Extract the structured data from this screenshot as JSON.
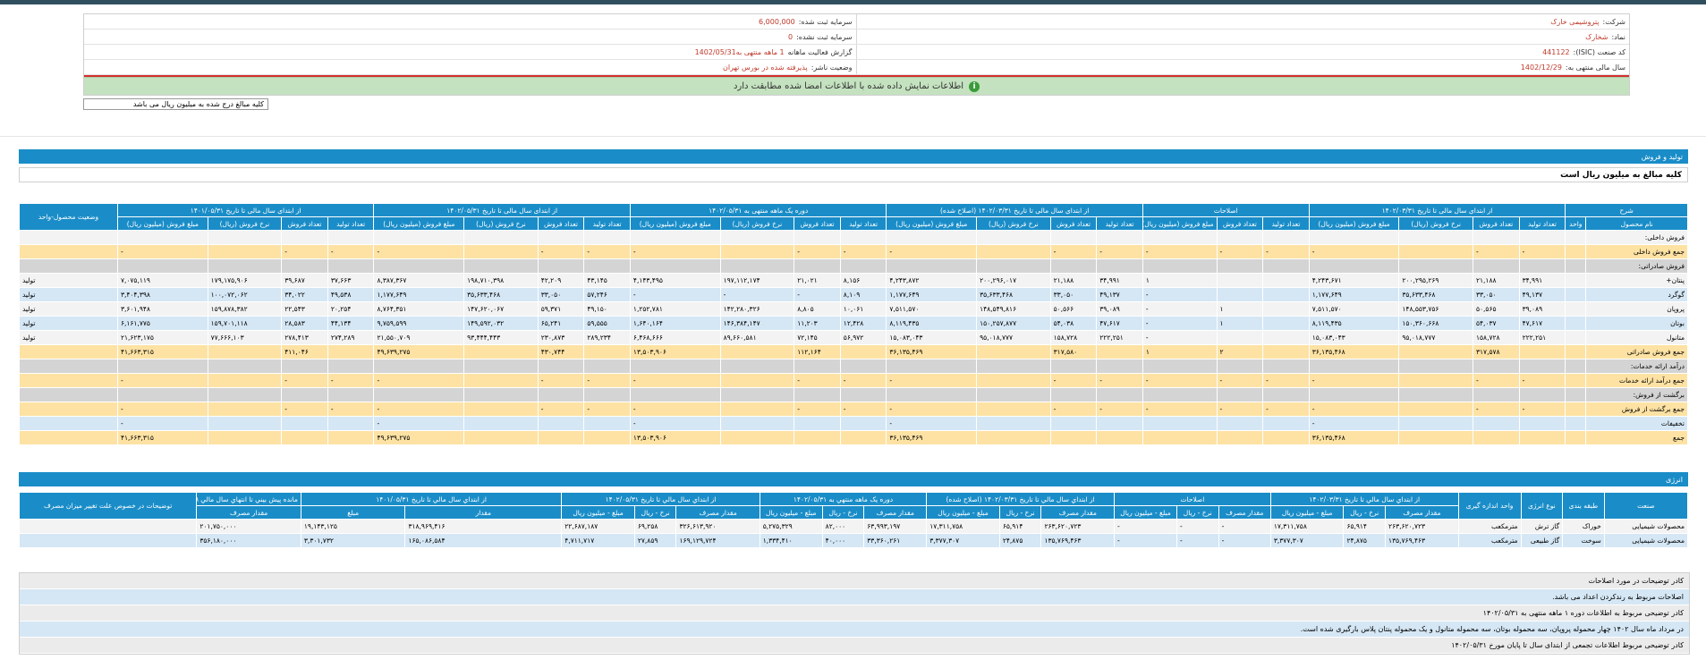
{
  "info": {
    "company_label": "شرکت:",
    "company_value": "پتروشیمی خارک",
    "reg_capital_label": "سرمایه ثبت شده:",
    "reg_capital_value": "6,000,000",
    "symbol_label": "نماد:",
    "symbol_value": "شخارک",
    "unreg_capital_label": "سرمایه ثبت نشده:",
    "unreg_capital_value": "0",
    "isic_label": "کد صنعت (ISIC):",
    "isic_value": "441122",
    "report_label": "گزارش فعالیت ماهانه",
    "report_value": "1 ماهه منتهی به1402/05/31",
    "fiscal_label": "سال مالی منتهی به:",
    "fiscal_value": "1402/12/29",
    "status_label": "وضعیت ناشر:",
    "status_value": "پذیرفته شده در بورس تهران",
    "banner": "اطلاعات نمایش داده شده با اطلاعات امضا شده مطابقت دارد",
    "banner_icon": "info-icon",
    "unit_note": "کلیه مبالغ درج شده به میلیون ریال می باشد"
  },
  "production": {
    "title": "تولید و فروش",
    "note": "کلیه مبالغ به میلیون ریال است",
    "group_headers": [
      "شرح",
      "از ابتدای سال مالی تا تاریخ ۱۴۰۲/۰۳/۳۱",
      "اصلاحات",
      "از ابتدای سال مالی تا تاریخ ۱۴۰۲/۰۳/۳۱ (اصلاح شده)",
      "دوره یک ماهه منتهی به ۱۴۰۲/۰۵/۳۱",
      "از ابتدای سال مالی تا تاریخ ۱۴۰۲/۰۵/۳۱",
      "از ابتدای سال مالی تا تاریخ ۱۴۰۱/۰۵/۳۱",
      "وضعیت محصول-واحد"
    ],
    "sub_headers": [
      "نام محصول",
      "واحد",
      "تعداد تولید",
      "تعداد فروش",
      "نرخ فروش (ریال)",
      "مبلغ فروش (میلیون ریال)",
      "تعداد تولید",
      "تعداد فروش",
      "مبلغ فروش (میلیون ریال)",
      "تعداد تولید",
      "تعداد فروش",
      "نرخ فروش (ریال)",
      "مبلغ فروش (میلیون ریال)",
      "تعداد تولید",
      "تعداد فروش",
      "نرخ فروش (ریال)",
      "مبلغ فروش (میلیون ریال)",
      "تعداد تولید",
      "تعداد فروش",
      "نرخ فروش (ریال)",
      "مبلغ فروش (میلیون ریال)",
      "تعداد تولید",
      "تعداد فروش",
      "نرخ فروش (ریال)",
      "مبلغ فروش (میلیون ریال)",
      ""
    ],
    "rows": [
      {
        "style": "w",
        "cells": [
          "فروش داخلی:",
          "",
          "",
          "",
          "",
          "",
          "",
          "",
          "",
          "",
          "",
          "",
          "",
          "",
          "",
          "",
          "",
          "",
          "",
          "",
          "",
          "",
          "",
          "",
          "",
          ""
        ]
      },
      {
        "style": "y",
        "cells": [
          "جمع فروش داخلی",
          "",
          "-",
          "-",
          "",
          "-",
          "-",
          "-",
          "-",
          "-",
          "-",
          "",
          "-",
          "-",
          "-",
          "",
          "-",
          "-",
          "-",
          "",
          "-",
          "-",
          "-",
          "",
          "-",
          ""
        ]
      },
      {
        "style": "g",
        "cells": [
          "فروش صادراتی:",
          "",
          "",
          "",
          "",
          "",
          "",
          "",
          "",
          "",
          "",
          "",
          "",
          "",
          "",
          "",
          "",
          "",
          "",
          "",
          "",
          "",
          "",
          "",
          "",
          ""
        ]
      },
      {
        "style": "w",
        "cells": [
          "پنتان+",
          "",
          "۳۴,۹۹۱",
          "۲۱,۱۸۸",
          "۲۰۰,۲۹۵,۲۶۹",
          "۴,۲۴۳,۶۷۱",
          "",
          "",
          "۱",
          "۳۴,۹۹۱",
          "۲۱,۱۸۸",
          "۲۰۰,۲۹۶,۰۱۷",
          "۴,۲۴۳,۸۷۲",
          "۸,۱۵۶",
          "۲۱,۰۲۱",
          "۱۹۷,۱۱۲,۱۷۴",
          "۴,۱۴۳,۴۹۵",
          "۴۳,۱۴۵",
          "۴۲,۲۰۹",
          "۱۹۸,۷۱۰,۳۹۸",
          "۸,۳۸۷,۳۶۷",
          "۳۷,۶۶۳",
          "۳۹,۶۸۷",
          "۱۷۹,۱۷۵,۹۰۶",
          "۷,۰۷۵,۱۱۹",
          "تولید"
        ]
      },
      {
        "style": "b",
        "cells": [
          "گوگرد",
          "",
          "۴۹,۱۳۷",
          "۳۳,۰۵۰",
          "۳۵,۶۳۳,۴۶۸",
          "۱,۱۷۷,۶۴۹",
          "",
          "",
          "-",
          "۴۹,۱۳۷",
          "۳۳,۰۵۰",
          "۳۵,۶۳۳,۴۶۸",
          "۱,۱۷۷,۶۴۹",
          "۸,۱۰۹",
          "-",
          "-",
          "-",
          "۵۷,۲۴۶",
          "۳۳,۰۵۰",
          "۳۵,۶۳۳,۴۶۸",
          "۱,۱۷۷,۶۴۹",
          "۴۹,۵۳۸",
          "۳۴,۰۲۲",
          "۱۰۰,۰۷۲,۰۶۲",
          "۳,۴۰۴,۳۹۸",
          "تولید"
        ]
      },
      {
        "style": "w",
        "cells": [
          "پروپان",
          "",
          "۳۹,۰۸۹",
          "۵۰,۵۶۵",
          "۱۴۸,۵۵۳,۷۵۶",
          "۷,۵۱۱,۵۷۰",
          "",
          "۱",
          "-",
          "۳۹,۰۸۹",
          "۵۰,۵۶۶",
          "۱۴۸,۵۴۹,۸۱۶",
          "۷,۵۱۱,۵۷۰",
          "۱۰,۰۶۱",
          "۸,۸۰۵",
          "۱۴۲,۲۸۰,۳۲۶",
          "۱,۲۵۲,۷۸۱",
          "۴۹,۱۵۰",
          "۵۹,۳۷۱",
          "۱۴۷,۶۲۰,۰۶۷",
          "۸,۷۶۴,۳۵۱",
          "۲۰,۲۵۴",
          "۲۲,۵۴۳",
          "۱۵۹,۸۷۸,۳۸۲",
          "۳,۶۰۱,۹۴۸",
          "تولید"
        ]
      },
      {
        "style": "b",
        "cells": [
          "بوتان",
          "",
          "۴۷,۶۱۷",
          "۵۴,۰۳۷",
          "۱۵۰,۳۶۰,۶۶۸",
          "۸,۱۱۹,۴۳۵",
          "",
          "۱",
          "-",
          "۴۷,۶۱۷",
          "۵۴,۰۳۸",
          "۱۵۰,۲۵۷,۸۷۷",
          "۸,۱۱۹,۴۳۵",
          "۱۲,۴۲۸",
          "۱۱,۲۰۳",
          "۱۴۶,۳۸۴,۱۴۷",
          "۱,۶۴۰,۱۶۴",
          "۵۹,۵۵۵",
          "۶۵,۲۴۱",
          "۱۴۹,۵۹۲,۰۳۲",
          "۹,۷۵۹,۵۹۹",
          "۴۴,۱۳۴",
          "۲۸,۵۸۳",
          "۱۵۹,۷۰۱,۱۱۸",
          "۶,۱۶۱,۷۷۵",
          "تولید"
        ]
      },
      {
        "style": "w",
        "cells": [
          "متانول",
          "",
          "۲۲۲,۲۵۱",
          "۱۵۸,۷۲۸",
          "۹۵,۰۱۸,۷۷۷",
          "۱۵,۰۸۳,۰۴۳",
          "",
          "",
          "-",
          "۲۲۲,۲۵۱",
          "۱۵۸,۷۲۸",
          "۹۵,۰۱۸,۷۷۷",
          "۱۵,۰۸۳,۰۴۳",
          "۵۶,۹۷۲",
          "۷۲,۱۴۵",
          "۸۹,۶۶۰,۵۸۱",
          "۶,۴۶۸,۶۶۶",
          "۲۸۹,۲۳۴",
          "۲۳۰,۸۷۳",
          "۹۳,۴۴۴,۴۴۳",
          "۲۱,۵۵۰,۷۰۹",
          "۲۷۴,۲۸۹",
          "۲۷۸,۴۱۳",
          "۷۷,۶۶۶,۱۰۳",
          "۲۱,۶۲۳,۱۷۵",
          "تولید"
        ]
      },
      {
        "style": "y",
        "cells": [
          "جمع فروش صادراتی",
          "",
          "",
          "۳۱۷,۵۷۸",
          "",
          "۳۶,۱۳۵,۴۶۸",
          "",
          "۲",
          "۱",
          "",
          "۳۱۷,۵۸۰",
          "",
          "۳۶,۱۳۵,۴۶۹",
          "",
          "۱۱۲,۱۶۴",
          "",
          "۱۳,۵۰۳,۹۰۶",
          "",
          "۴۳۰,۷۴۴",
          "",
          "۴۹,۶۳۹,۲۷۵",
          "",
          "۴۱۱,۰۴۶",
          "",
          "۴۱,۶۶۳,۳۱۵",
          ""
        ]
      },
      {
        "style": "g",
        "cells": [
          "درآمد ارائه خدمات:",
          "",
          "",
          "",
          "",
          "",
          "",
          "",
          "",
          "",
          "",
          "",
          "",
          "",
          "",
          "",
          "",
          "",
          "",
          "",
          "",
          "",
          "",
          "",
          "",
          ""
        ]
      },
      {
        "style": "y",
        "cells": [
          "جمع درآمد ارائه خدمات",
          "",
          "-",
          "-",
          "",
          "-",
          "-",
          "-",
          "-",
          "-",
          "-",
          "",
          "-",
          "-",
          "-",
          "",
          "-",
          "-",
          "-",
          "",
          "-",
          "-",
          "-",
          "",
          "-",
          ""
        ]
      },
      {
        "style": "g",
        "cells": [
          "برگشت از فروش:",
          "",
          "",
          "",
          "",
          "",
          "",
          "",
          "",
          "",
          "",
          "",
          "",
          "",
          "",
          "",
          "",
          "",
          "",
          "",
          "",
          "",
          "",
          "",
          "",
          ""
        ]
      },
      {
        "style": "y",
        "cells": [
          "جمع برگشت از فروش",
          "",
          "-",
          "-",
          "",
          "-",
          "-",
          "-",
          "-",
          "-",
          "-",
          "",
          "-",
          "-",
          "-",
          "",
          "-",
          "-",
          "-",
          "",
          "-",
          "-",
          "-",
          "",
          "-",
          ""
        ]
      },
      {
        "style": "b",
        "cells": [
          "تخفیفات",
          "",
          "",
          "",
          "",
          "-",
          "",
          "",
          "",
          "",
          "",
          "",
          "-",
          "",
          "",
          "",
          "-",
          "",
          "",
          "",
          "-",
          "",
          "",
          "",
          "-",
          ""
        ]
      },
      {
        "style": "y",
        "cells": [
          "جمع",
          "",
          "",
          "",
          "",
          "۳۶,۱۳۵,۴۶۸",
          "",
          "",
          "",
          "",
          "",
          "",
          "۳۶,۱۳۵,۴۶۹",
          "",
          "",
          "",
          "۱۳,۵۰۳,۹۰۶",
          "",
          "",
          "",
          "۴۹,۶۳۹,۲۷۵",
          "",
          "",
          "",
          "۴۱,۶۶۳,۳۱۵",
          ""
        ]
      }
    ]
  },
  "energy": {
    "title": "انرژی",
    "group_headers": [
      "صنعت",
      "طبقه بندی",
      "نوع انرژی",
      "واحد اندازه گیری",
      "از ابتداي سال مالي تا تاريخ ۱۴۰۲/۰۳/۳۱",
      "اصلاحات",
      "از ابتداي سال مالي تا تاريخ ۱۴۰۲/۰۳/۳۱ (اصلاح شده)",
      "دوره يک ماهه منتهي به ۱۴۰۲/۰۵/۳۱",
      "از ابتداي سال مالي تا تاريخ ۱۴۰۲/۰۵/۳۱",
      "از ابتداي سال مالي تا تاريخ ۱۴۰۱/۰۵/۳۱",
      "مانده پيش بيني تا انتهاي سال مالي ۱۴۰۲/۱۲/۲۹",
      "توضيحات در خصوص علت تغيير ميزان مصرف"
    ],
    "sub_headers": [
      "مقدار مصرف",
      "نرخ - ريال",
      "مبلغ - ميليون ريال",
      "مقدار مصرف",
      "نرخ - ريال",
      "مبلغ - ميليون ريال",
      "مقدار مصرف",
      "نرخ - ريال",
      "مبلغ - ميليون ريال",
      "مقدار مصرف",
      "نرخ - ريال",
      "مبلغ - ميليون ريال",
      "مقدار مصرف",
      "نرخ - ريال",
      "مبلغ - ميليون ريال",
      "مقدار",
      "مبلغ",
      "مقدار مصرف"
    ],
    "rows": [
      {
        "style": "w",
        "cells": [
          "محصولات شیمیایی",
          "خوراک",
          "گاز ترش",
          "مترمکعب",
          "۲۶۳,۶۲۰,۷۲۳",
          "۶۵,۹۱۴",
          "۱۷,۳۱۱,۷۵۸",
          "-",
          "-",
          "-",
          "۲۶۳,۶۲۰,۷۲۳",
          "۶۵,۹۱۴",
          "۱۷,۳۱۱,۷۵۸",
          "۶۳,۹۹۳,۱۹۷",
          "۸۲,۰۰۰",
          "۵,۲۷۵,۳۲۹",
          "۳۲۶,۶۱۳,۹۲۰",
          "۶۹,۲۵۸",
          "۲۲,۶۸۷,۱۸۷",
          "۳۱۸,۹۶۹,۴۱۶",
          "۱۹,۱۴۳,۱۲۵",
          "۲۰۱,۷۵۰,۰۰۰",
          ""
        ]
      },
      {
        "style": "b",
        "cells": [
          "محصولات شیمیایی",
          "سوخت",
          "گاز طبیعی",
          "مترمکعب",
          "۱۳۵,۷۶۹,۴۶۳",
          "۲۴,۸۷۵",
          "۳,۳۷۷,۳۰۷",
          "-",
          "-",
          "-",
          "۱۳۵,۷۶۹,۴۶۳",
          "۲۴,۸۷۵",
          "۳,۳۷۷,۳۰۷",
          "۳۳,۳۶۰,۲۶۱",
          "۴۰,۰۰۰",
          "۱,۳۳۴,۴۱۰",
          "۱۶۹,۱۲۹,۷۲۴",
          "۲۷,۸۵۹",
          "۴,۷۱۱,۷۱۷",
          "۱۶۵,۰۸۶,۵۸۴",
          "۳,۳۰۱,۷۳۲",
          "۳۵۶,۱۸۰,۰۰۰",
          ""
        ]
      }
    ]
  },
  "notes": [
    {
      "style": "w",
      "text": "کادر توضیحات در مورد اصلاحات"
    },
    {
      "style": "b",
      "text": "اصلاحات مربوط به رندکردن اعداد می باشد."
    },
    {
      "style": "w",
      "text": "کادر توضیحی مربوط به اطلاعات دوره ۱ ماهه منتهی به ۱۴۰۲/۰۵/۳۱"
    },
    {
      "style": "b",
      "text": "در مرداد ماه سال ۱۴۰۲ چهار محموله پروپان، سه محموله بوتان، سه محموله متانول و یک محموله پنتان پلاس بارگیری شده است."
    },
    {
      "style": "w",
      "text": "کادر توضیحی مربوط اطلاعات تجمعی از ابتدای سال تا پایان مورخ ۱۴۰۲/۰۵/۳۱"
    }
  ]
}
